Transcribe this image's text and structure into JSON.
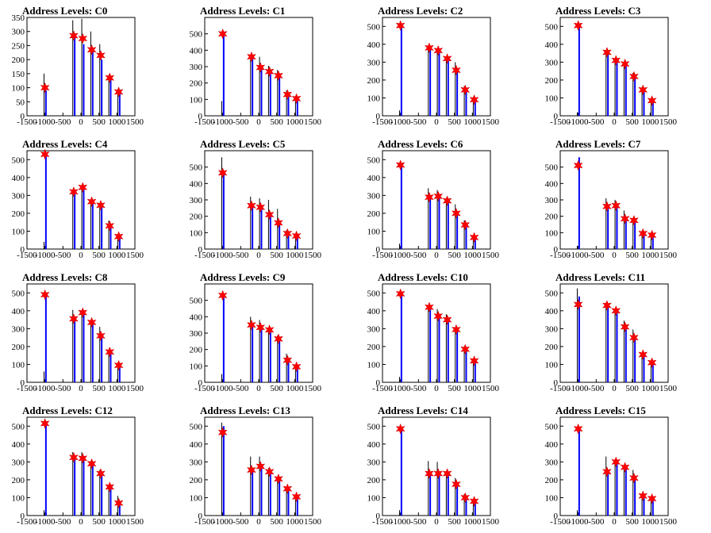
{
  "chart_data": [
    {
      "title": "Address Levels: C0",
      "type": "bar",
      "xlim": [
        -1500,
        1500
      ],
      "ylim": [
        0,
        350
      ],
      "yticks": [
        0,
        50,
        100,
        150,
        200,
        250,
        300,
        350
      ],
      "xticks": [
        -1500,
        -1000,
        -500,
        0,
        500,
        1000,
        1500
      ],
      "levels_x": [
        -1000,
        -200,
        50,
        300,
        550,
        800,
        1050
      ],
      "star_values": [
        100,
        285,
        275,
        235,
        215,
        135,
        85
      ],
      "black_peaks": [
        150,
        340,
        345,
        300,
        255,
        145,
        95
      ],
      "blue_peaks": [
        90,
        285,
        255,
        235,
        200,
        140,
        80
      ]
    },
    {
      "title": "Address Levels: C1",
      "type": "bar",
      "xlim": [
        -1500,
        1500
      ],
      "ylim": [
        0,
        600
      ],
      "yticks": [
        0,
        100,
        200,
        300,
        400,
        500
      ],
      "xticks": [
        -1500,
        -1000,
        -500,
        0,
        500,
        1000,
        1500
      ],
      "levels_x": [
        -1000,
        -200,
        50,
        300,
        550,
        800,
        1050
      ],
      "star_values": [
        500,
        360,
        295,
        270,
        245,
        130,
        105
      ],
      "black_peaks": [
        90,
        370,
        360,
        305,
        280,
        155,
        110
      ],
      "blue_peaks": [
        510,
        355,
        295,
        270,
        245,
        130,
        100
      ]
    },
    {
      "title": "Address Levels: C2",
      "type": "bar",
      "xlim": [
        -1500,
        1500
      ],
      "ylim": [
        0,
        550
      ],
      "yticks": [
        0,
        100,
        200,
        300,
        400,
        500
      ],
      "xticks": [
        -1500,
        -1000,
        -500,
        0,
        500,
        1000,
        1500
      ],
      "levels_x": [
        -1000,
        -200,
        50,
        300,
        550,
        800,
        1050
      ],
      "star_values": [
        505,
        380,
        365,
        320,
        255,
        145,
        90
      ],
      "black_peaks": [
        30,
        385,
        375,
        330,
        300,
        165,
        105
      ],
      "blue_peaks": [
        510,
        380,
        360,
        320,
        250,
        150,
        90
      ]
    },
    {
      "title": "Address Levels: C3",
      "type": "bar",
      "xlim": [
        -1500,
        1500
      ],
      "ylim": [
        0,
        550
      ],
      "yticks": [
        0,
        100,
        200,
        300,
        400,
        500
      ],
      "xticks": [
        -1500,
        -1000,
        -500,
        0,
        500,
        1000,
        1500
      ],
      "levels_x": [
        -1000,
        -200,
        50,
        300,
        550,
        800,
        1050
      ],
      "star_values": [
        505,
        355,
        310,
        290,
        220,
        145,
        85
      ],
      "black_peaks": [
        20,
        360,
        320,
        300,
        240,
        160,
        90
      ],
      "blue_peaks": [
        510,
        350,
        310,
        290,
        220,
        150,
        85
      ]
    },
    {
      "title": "Address Levels: C4",
      "type": "bar",
      "xlim": [
        -1500,
        1500
      ],
      "ylim": [
        0,
        550
      ],
      "yticks": [
        0,
        100,
        200,
        300,
        400,
        500
      ],
      "xticks": [
        -1500,
        -1000,
        -500,
        0,
        500,
        1000,
        1500
      ],
      "levels_x": [
        -1000,
        -200,
        50,
        300,
        550,
        800,
        1050
      ],
      "star_values": [
        530,
        320,
        345,
        265,
        245,
        130,
        70
      ],
      "black_peaks": [
        40,
        330,
        355,
        275,
        250,
        160,
        80
      ],
      "blue_peaks": [
        535,
        320,
        345,
        265,
        240,
        135,
        70
      ]
    },
    {
      "title": "Address Levels: C5",
      "type": "bar",
      "xlim": [
        -1500,
        1500
      ],
      "ylim": [
        0,
        600
      ],
      "yticks": [
        0,
        100,
        200,
        300,
        400,
        500
      ],
      "xticks": [
        -1500,
        -1000,
        -500,
        0,
        500,
        1000,
        1500
      ],
      "levels_x": [
        -1000,
        -200,
        50,
        300,
        550,
        800,
        1050
      ],
      "star_values": [
        465,
        265,
        255,
        210,
        160,
        95,
        80
      ],
      "black_peaks": [
        560,
        320,
        310,
        300,
        245,
        115,
        90
      ],
      "blue_peaks": [
        460,
        265,
        255,
        210,
        160,
        95,
        80
      ]
    },
    {
      "title": "Address Levels: C6",
      "type": "bar",
      "xlim": [
        -1500,
        1500
      ],
      "ylim": [
        0,
        550
      ],
      "yticks": [
        0,
        100,
        200,
        300,
        400,
        500
      ],
      "xticks": [
        -1500,
        -1000,
        -500,
        0,
        500,
        1000,
        1500
      ],
      "levels_x": [
        -1000,
        -200,
        50,
        300,
        550,
        800,
        1050
      ],
      "star_values": [
        470,
        290,
        295,
        270,
        200,
        135,
        65
      ],
      "black_peaks": [
        30,
        340,
        330,
        285,
        250,
        160,
        80
      ],
      "blue_peaks": [
        480,
        290,
        295,
        270,
        200,
        140,
        65
      ]
    },
    {
      "title": "Address Levels: C7",
      "type": "bar",
      "xlim": [
        -1500,
        1500
      ],
      "ylim": [
        0,
        600
      ],
      "yticks": [
        0,
        100,
        200,
        300,
        400,
        500
      ],
      "xticks": [
        -1500,
        -1000,
        -500,
        0,
        500,
        1000,
        1500
      ],
      "levels_x": [
        -1000,
        -200,
        50,
        300,
        550,
        800,
        1050
      ],
      "star_values": [
        510,
        260,
        265,
        185,
        175,
        95,
        85
      ],
      "black_peaks": [
        20,
        310,
        300,
        235,
        190,
        110,
        95
      ],
      "blue_peaks": [
        560,
        260,
        265,
        185,
        175,
        95,
        85
      ]
    },
    {
      "title": "Address Levels: C8",
      "type": "bar",
      "xlim": [
        -1500,
        1500
      ],
      "ylim": [
        0,
        550
      ],
      "yticks": [
        0,
        100,
        200,
        300,
        400,
        500
      ],
      "xticks": [
        -1500,
        -1000,
        -500,
        0,
        500,
        1000,
        1500
      ],
      "levels_x": [
        -1000,
        -200,
        50,
        300,
        550,
        800,
        1050
      ],
      "star_values": [
        490,
        355,
        390,
        335,
        260,
        170,
        95
      ],
      "black_peaks": [
        60,
        405,
        400,
        340,
        310,
        180,
        110
      ],
      "blue_peaks": [
        500,
        355,
        390,
        335,
        260,
        170,
        95
      ]
    },
    {
      "title": "Address Levels: C9",
      "type": "bar",
      "xlim": [
        -1500,
        1500
      ],
      "ylim": [
        0,
        600
      ],
      "yticks": [
        0,
        100,
        200,
        300,
        400,
        500
      ],
      "xticks": [
        -1500,
        -1000,
        -500,
        0,
        500,
        1000,
        1500
      ],
      "levels_x": [
        -1000,
        -200,
        50,
        300,
        550,
        800,
        1050
      ],
      "star_values": [
        530,
        350,
        335,
        320,
        265,
        135,
        95
      ],
      "black_peaks": [
        50,
        400,
        380,
        330,
        285,
        175,
        105
      ],
      "blue_peaks": [
        525,
        350,
        335,
        320,
        265,
        135,
        95
      ]
    },
    {
      "title": "Address Levels: C10",
      "type": "bar",
      "xlim": [
        -1500,
        1500
      ],
      "ylim": [
        0,
        550
      ],
      "yticks": [
        0,
        100,
        200,
        300,
        400,
        500
      ],
      "xticks": [
        -1500,
        -1000,
        -500,
        0,
        500,
        1000,
        1500
      ],
      "levels_x": [
        -1000,
        -200,
        50,
        300,
        550,
        800,
        1050
      ],
      "star_values": [
        495,
        420,
        370,
        350,
        295,
        185,
        120
      ],
      "black_peaks": [
        30,
        430,
        410,
        380,
        300,
        200,
        130
      ],
      "blue_peaks": [
        505,
        420,
        370,
        350,
        295,
        185,
        120
      ]
    },
    {
      "title": "Address Levels: C11",
      "type": "bar",
      "xlim": [
        -1500,
        1500
      ],
      "ylim": [
        0,
        550
      ],
      "yticks": [
        0,
        100,
        200,
        300,
        400,
        500
      ],
      "xticks": [
        -1500,
        -1000,
        -500,
        0,
        500,
        1000,
        1500
      ],
      "levels_x": [
        -1000,
        -200,
        50,
        300,
        550,
        800,
        1050
      ],
      "star_values": [
        435,
        430,
        400,
        310,
        250,
        155,
        110
      ],
      "black_peaks": [
        525,
        445,
        410,
        345,
        295,
        160,
        115
      ],
      "blue_peaks": [
        480,
        430,
        395,
        310,
        245,
        155,
        110
      ]
    },
    {
      "title": "Address Levels: C12",
      "type": "bar",
      "xlim": [
        -1500,
        1500
      ],
      "ylim": [
        0,
        550
      ],
      "yticks": [
        0,
        100,
        200,
        300,
        400,
        500
      ],
      "xticks": [
        -1500,
        -1000,
        -500,
        0,
        500,
        1000,
        1500
      ],
      "levels_x": [
        -1000,
        -200,
        50,
        300,
        550,
        800,
        1050
      ],
      "star_values": [
        515,
        325,
        320,
        290,
        235,
        160,
        70
      ],
      "black_peaks": [
        30,
        355,
        355,
        305,
        255,
        170,
        110
      ],
      "blue_peaks": [
        525,
        330,
        320,
        290,
        235,
        160,
        70
      ]
    },
    {
      "title": "Address Levels: C13",
      "type": "bar",
      "xlim": [
        -1500,
        1500
      ],
      "ylim": [
        0,
        550
      ],
      "yticks": [
        0,
        100,
        200,
        300,
        400,
        500
      ],
      "xticks": [
        -1500,
        -1000,
        -500,
        0,
        500,
        1000,
        1500
      ],
      "levels_x": [
        -1000,
        -200,
        50,
        300,
        550,
        800,
        1050
      ],
      "star_values": [
        465,
        255,
        275,
        245,
        205,
        150,
        105
      ],
      "black_peaks": [
        520,
        330,
        330,
        265,
        210,
        160,
        110
      ],
      "blue_peaks": [
        500,
        255,
        275,
        245,
        205,
        150,
        105
      ]
    },
    {
      "title": "Address Levels: C14",
      "type": "bar",
      "xlim": [
        -1500,
        1500
      ],
      "ylim": [
        0,
        550
      ],
      "yticks": [
        0,
        100,
        200,
        300,
        400,
        500
      ],
      "xticks": [
        -1500,
        -1000,
        -500,
        0,
        500,
        1000,
        1500
      ],
      "levels_x": [
        -1000,
        -200,
        50,
        300,
        550,
        800,
        1050
      ],
      "star_values": [
        485,
        235,
        235,
        235,
        175,
        100,
        80
      ],
      "black_peaks": [
        30,
        305,
        300,
        240,
        210,
        120,
        90
      ],
      "blue_peaks": [
        495,
        235,
        235,
        235,
        175,
        100,
        80
      ]
    },
    {
      "title": "Address Levels: C15",
      "type": "bar",
      "xlim": [
        -1500,
        1500
      ],
      "ylim": [
        0,
        550
      ],
      "yticks": [
        0,
        100,
        200,
        300,
        400,
        500
      ],
      "xticks": [
        -1500,
        -1000,
        -500,
        0,
        500,
        1000,
        1500
      ],
      "levels_x": [
        -1000,
        -200,
        50,
        300,
        550,
        800,
        1050
      ],
      "star_values": [
        485,
        245,
        300,
        270,
        210,
        110,
        95
      ],
      "black_peaks": [
        30,
        330,
        310,
        280,
        255,
        120,
        100
      ],
      "blue_peaks": [
        495,
        245,
        300,
        270,
        210,
        110,
        95
      ]
    }
  ],
  "colors": {
    "star": "#ff0000",
    "blue_series": "#0000ff",
    "black_series": "#000000",
    "axis": "#000000"
  }
}
